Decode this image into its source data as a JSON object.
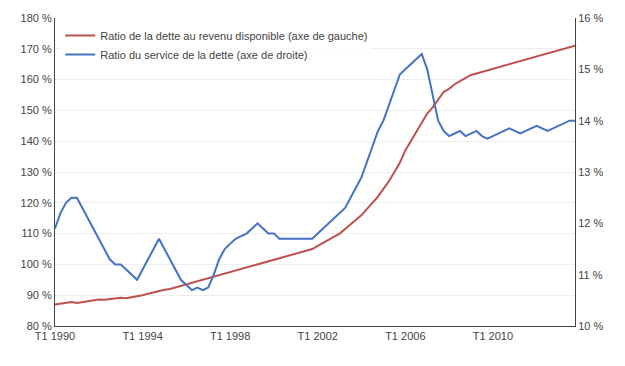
{
  "chart_data": {
    "type": "line",
    "categories": [
      "T1 1990",
      null,
      null,
      null,
      null,
      null,
      null,
      null,
      null,
      null,
      null,
      null,
      null,
      null,
      null,
      null,
      "T1 1994",
      null,
      null,
      null,
      null,
      null,
      null,
      null,
      null,
      null,
      null,
      null,
      null,
      null,
      null,
      null,
      "T1 1998",
      null,
      null,
      null,
      null,
      null,
      null,
      null,
      null,
      null,
      null,
      null,
      null,
      null,
      null,
      null,
      "T1 2002",
      null,
      null,
      null,
      null,
      null,
      null,
      null,
      null,
      null,
      null,
      null,
      null,
      null,
      null,
      null,
      "T1 2006",
      null,
      null,
      null,
      null,
      null,
      null,
      null,
      null,
      null,
      null,
      null,
      null,
      null,
      null,
      null,
      "T1 2010",
      null,
      null,
      null,
      null,
      null,
      null,
      null,
      null,
      null,
      null,
      null,
      null,
      null,
      null,
      null
    ],
    "series": [
      {
        "name": "Ratio de la dette au revenu disponible (axe de gauche)",
        "color": "#C0504D",
        "axis": "y",
        "values": [
          87.0,
          87.2,
          87.5,
          87.8,
          87.5,
          87.8,
          88.0,
          88.3,
          88.6,
          88.5,
          88.8,
          89.0,
          89.2,
          89.0,
          89.3,
          89.5,
          90.0,
          90.5,
          91.0,
          91.5,
          91.8,
          92.0,
          92.5,
          93.0,
          93.5,
          94.0,
          94.5,
          95.0,
          95.5,
          96.0,
          96.5,
          97.0,
          97.5,
          98.0,
          98.5,
          99.0,
          99.5,
          100.0,
          100.5,
          101.0,
          101.5,
          102.0,
          102.5,
          103.0,
          103.5,
          104.0,
          104.5,
          105.0,
          106.0,
          107.0,
          108.0,
          109.0,
          110.0,
          111.5,
          113.0,
          114.5,
          116.0,
          118.0,
          120.0,
          122.0,
          124.5,
          127.0,
          130.0,
          133.0,
          137.0,
          140.0,
          143.0,
          146.0,
          149.0,
          151.0,
          153.5,
          156.0,
          157.0,
          158.5,
          159.5,
          160.5,
          161.5,
          162.0,
          162.5,
          163.0,
          163.5,
          164.0,
          164.5,
          165.0,
          165.5,
          166.0,
          166.5,
          167.0,
          167.5,
          168.0,
          168.5,
          169.0,
          169.5,
          170.0,
          170.5,
          171.0
        ]
      },
      {
        "name": "Ratio du service de la dette (axe de droite)",
        "color": "#4472C4",
        "axis": "y2",
        "values": [
          11.9,
          12.2,
          12.4,
          12.5,
          12.5,
          12.3,
          12.1,
          11.9,
          11.7,
          11.5,
          11.3,
          11.2,
          11.2,
          11.1,
          11.0,
          10.9,
          11.1,
          11.3,
          11.5,
          11.7,
          11.5,
          11.3,
          11.1,
          10.9,
          10.8,
          10.7,
          10.75,
          10.7,
          10.75,
          11.0,
          11.3,
          11.5,
          11.6,
          11.7,
          11.75,
          11.8,
          11.9,
          12.0,
          11.9,
          11.8,
          11.8,
          11.7,
          11.7,
          11.7,
          11.7,
          11.7,
          11.7,
          11.7,
          11.8,
          11.9,
          12.0,
          12.1,
          12.2,
          12.3,
          12.5,
          12.7,
          12.9,
          13.2,
          13.5,
          13.8,
          14.0,
          14.3,
          14.6,
          14.9,
          15.0,
          15.1,
          15.2,
          15.3,
          15.0,
          14.5,
          14.0,
          13.8,
          13.7,
          13.75,
          13.8,
          13.7,
          13.75,
          13.8,
          13.7,
          13.65,
          13.7,
          13.75,
          13.8,
          13.85,
          13.8,
          13.75,
          13.8,
          13.85,
          13.9,
          13.85,
          13.8,
          13.85,
          13.9,
          13.95,
          14.0,
          14.0
        ]
      }
    ],
    "ylim": [
      80,
      180
    ],
    "yticks": [
      {
        "value": 80,
        "label": "80 %"
      },
      {
        "value": 90,
        "label": "90 %"
      },
      {
        "value": 100,
        "label": "100 %"
      },
      {
        "value": 110,
        "label": "110 %"
      },
      {
        "value": 120,
        "label": "120 %"
      },
      {
        "value": 130,
        "label": "130 %"
      },
      {
        "value": 140,
        "label": "140 %"
      },
      {
        "value": 150,
        "label": "150 %"
      },
      {
        "value": 160,
        "label": "160 %"
      },
      {
        "value": 170,
        "label": "170 %"
      },
      {
        "value": 180,
        "label": "180 %"
      }
    ],
    "y2lim": [
      10,
      16
    ],
    "y2ticks": [
      {
        "value": 10,
        "label": "10 %"
      },
      {
        "value": 11,
        "label": "11 %"
      },
      {
        "value": 12,
        "label": "12 %"
      },
      {
        "value": 13,
        "label": "13 %"
      },
      {
        "value": 14,
        "label": "14 %"
      },
      {
        "value": 15,
        "label": "15 %"
      },
      {
        "value": 16,
        "label": "16 %"
      }
    ],
    "grid": true,
    "legend": "upper left"
  }
}
